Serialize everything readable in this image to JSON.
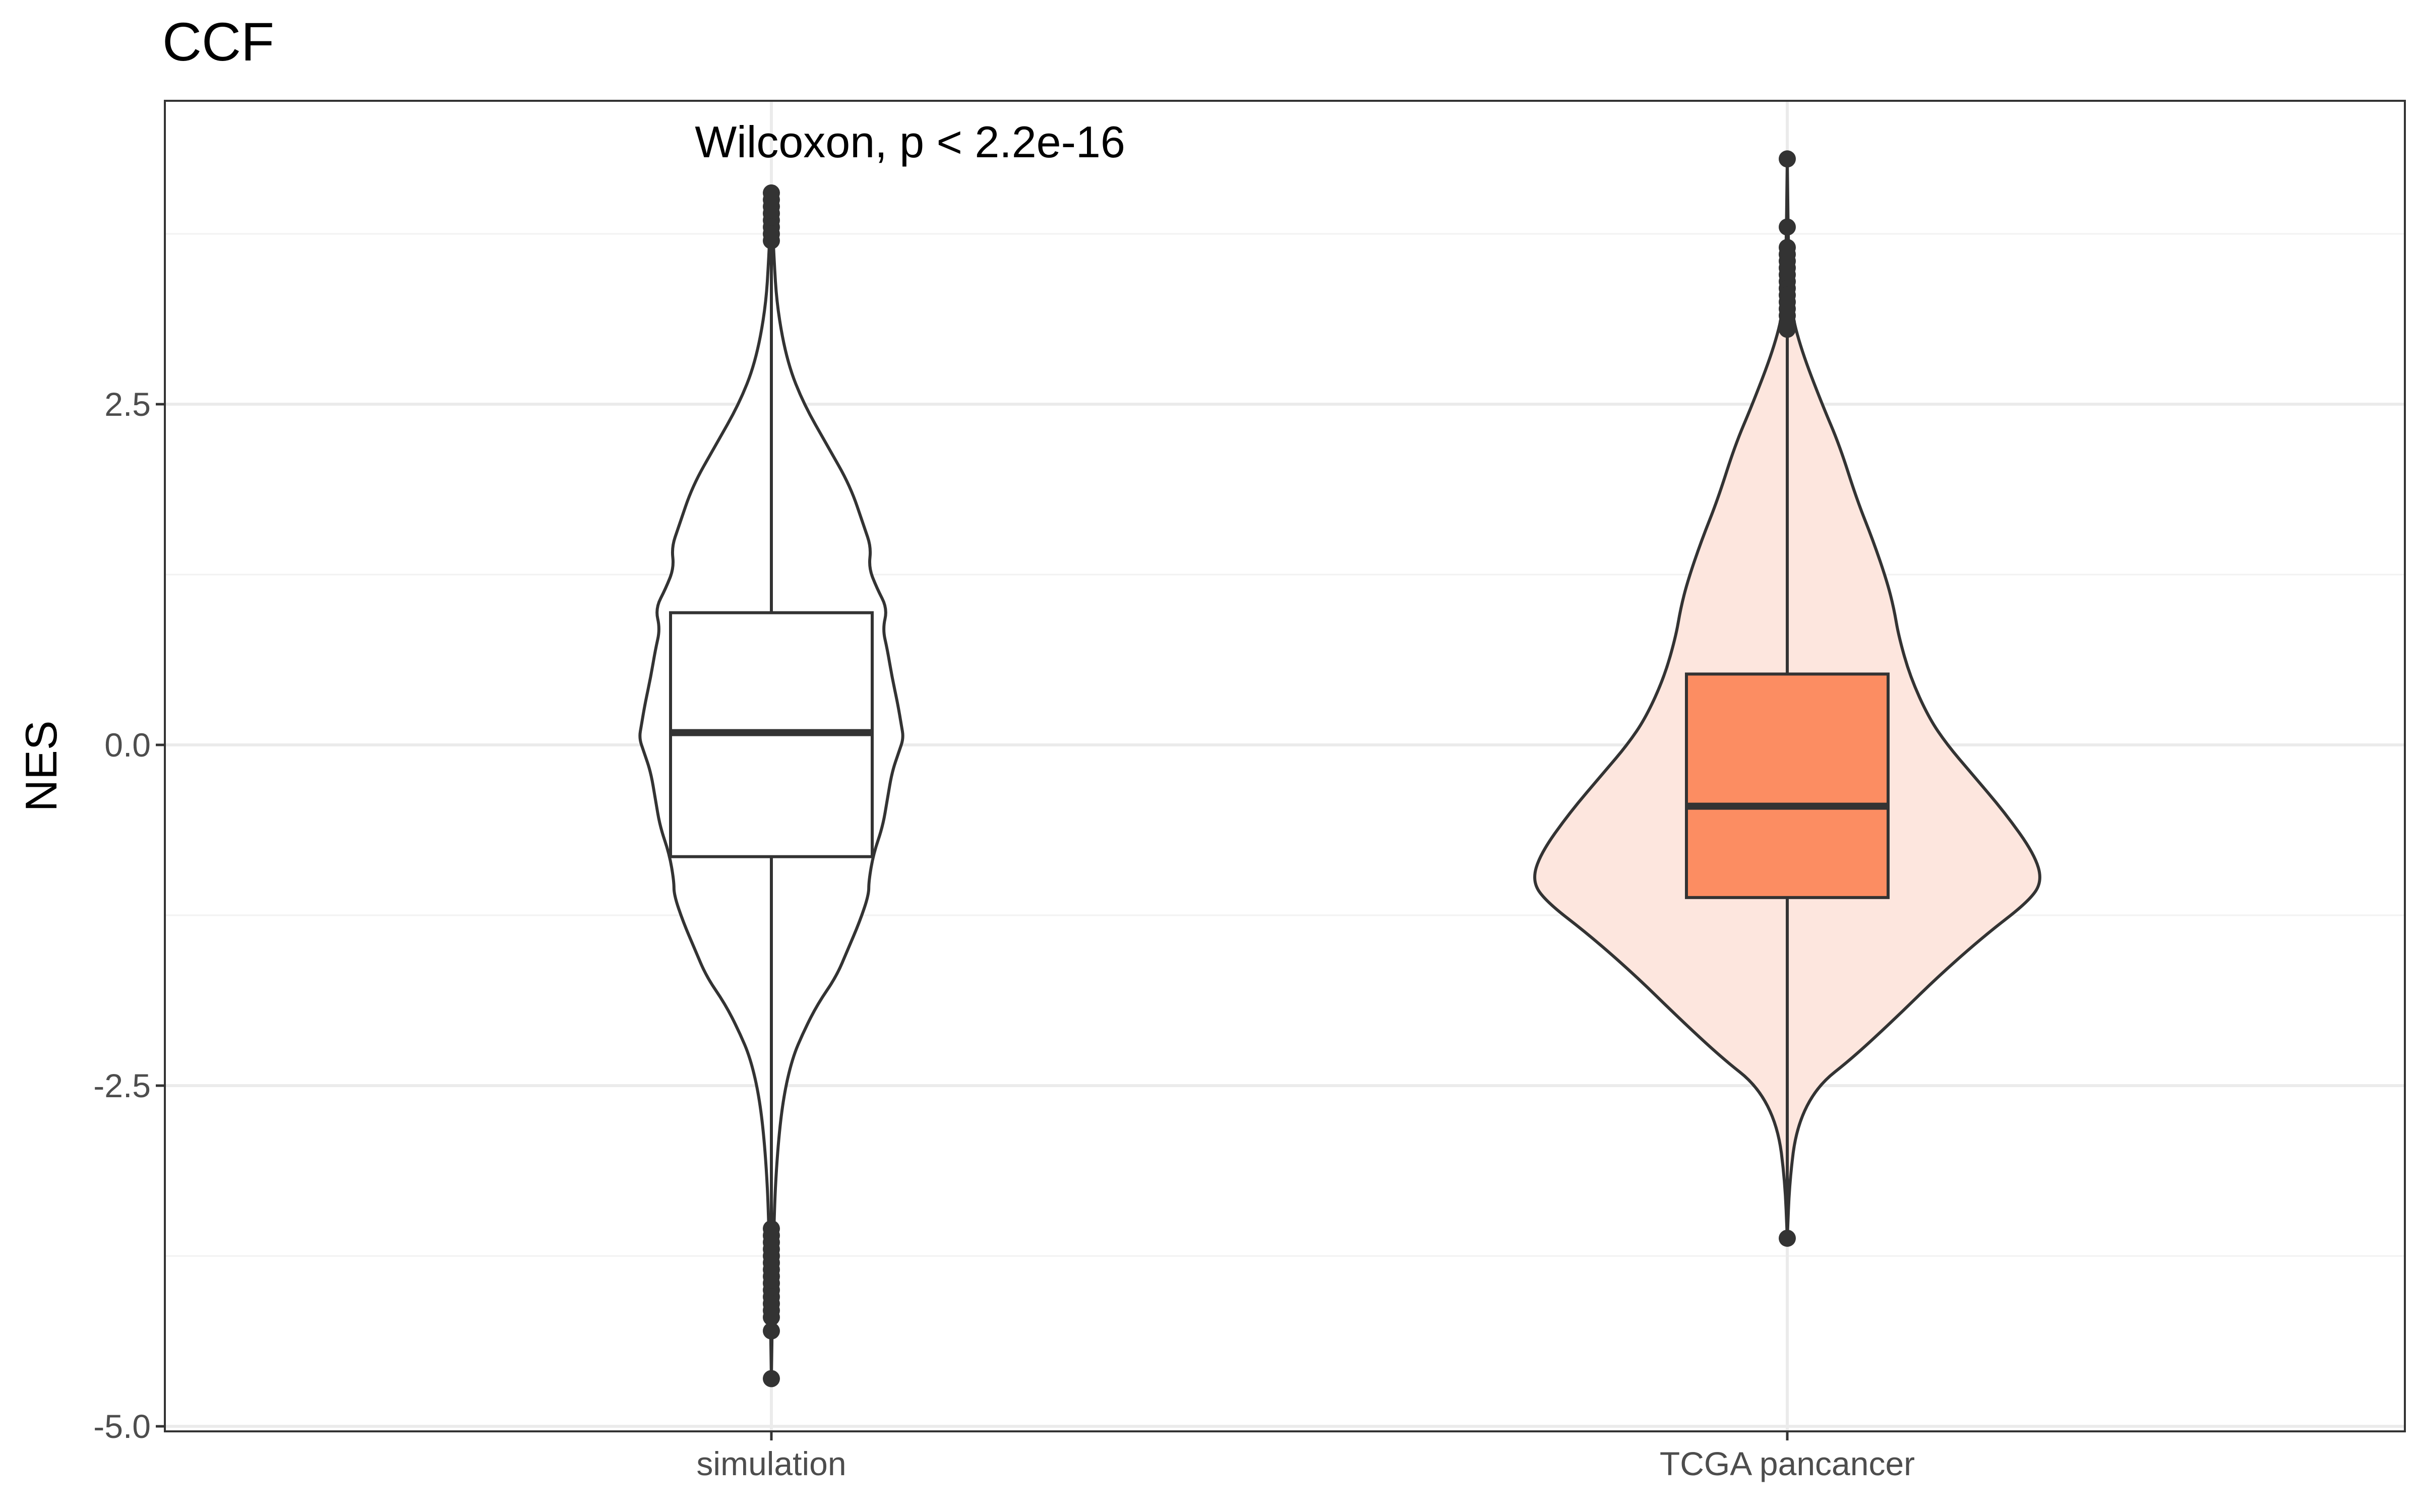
{
  "chart_data": {
    "type": "violin",
    "title": "CCF",
    "xlabel": "",
    "ylabel": "NES",
    "ylim": [
      -5.05,
      4.8
    ],
    "yticks": [
      2.5,
      0.0,
      -2.5,
      -5.0
    ],
    "ytick_labels": [
      "2.5",
      "0.0",
      "-2.5",
      "-5.0"
    ],
    "grid": true,
    "annotation": "Wilcoxon, p < 2.2e-16",
    "groups": [
      {
        "name": "simulation",
        "fill": "#ffffff",
        "box_fill": "#ffffff",
        "min": -4.65,
        "q1": -0.82,
        "median": 0.09,
        "q3": 0.97,
        "whisker_low": -3.5,
        "whisker_high": 3.65,
        "outliers": [
          4.05,
          4.0,
          3.95,
          3.9,
          3.85,
          3.8,
          3.75,
          3.7,
          -3.55,
          -3.6,
          -3.65,
          -3.7,
          -3.75,
          -3.8,
          -3.85,
          -3.9,
          -3.95,
          -4.0,
          -4.05,
          -4.1,
          -4.15,
          -4.2,
          -4.3,
          -4.65
        ],
        "density_profile": [
          [
            4.05,
            0.0
          ],
          [
            3.6,
            0.02
          ],
          [
            3.2,
            0.05
          ],
          [
            2.8,
            0.14
          ],
          [
            2.5,
            0.28
          ],
          [
            2.2,
            0.48
          ],
          [
            1.9,
            0.68
          ],
          [
            1.6,
            0.8
          ],
          [
            1.45,
            0.86
          ],
          [
            1.3,
            0.84
          ],
          [
            1.15,
            0.91
          ],
          [
            1.0,
            1.0
          ],
          [
            0.85,
            0.96
          ],
          [
            0.7,
            1.0
          ],
          [
            0.5,
            1.04
          ],
          [
            0.3,
            1.09
          ],
          [
            0.15,
            1.12
          ],
          [
            0.05,
            1.14
          ],
          [
            -0.05,
            1.1
          ],
          [
            -0.2,
            1.04
          ],
          [
            -0.4,
            1.0
          ],
          [
            -0.6,
            0.96
          ],
          [
            -0.8,
            0.88
          ],
          [
            -1.0,
            0.84
          ],
          [
            -1.1,
            0.84
          ],
          [
            -1.3,
            0.76
          ],
          [
            -1.5,
            0.66
          ],
          [
            -1.7,
            0.56
          ],
          [
            -1.9,
            0.4
          ],
          [
            -2.1,
            0.28
          ],
          [
            -2.3,
            0.18
          ],
          [
            -2.6,
            0.1
          ],
          [
            -3.0,
            0.05
          ],
          [
            -3.5,
            0.02
          ],
          [
            -4.65,
            0.0
          ]
        ]
      },
      {
        "name": "TCGA pancancer",
        "fill": "#fde6de",
        "box_fill": "#fc8d62",
        "min": -3.62,
        "q1": -1.12,
        "median": -0.45,
        "q3": 0.52,
        "whisker_low": -3.62,
        "whisker_high": 4.3,
        "outliers": [
          4.3,
          3.8,
          3.65,
          3.6,
          3.55,
          3.5,
          3.45,
          3.4,
          3.35,
          3.3,
          3.25,
          3.2,
          3.15,
          3.1,
          3.05,
          -3.62
        ],
        "density_profile": [
          [
            4.3,
            0.0
          ],
          [
            3.6,
            0.01
          ],
          [
            3.2,
            0.03
          ],
          [
            2.9,
            0.12
          ],
          [
            2.5,
            0.3
          ],
          [
            2.2,
            0.45
          ],
          [
            1.8,
            0.6
          ],
          [
            1.5,
            0.74
          ],
          [
            1.2,
            0.86
          ],
          [
            1.0,
            0.92
          ],
          [
            0.8,
            0.96
          ],
          [
            0.5,
            1.06
          ],
          [
            0.2,
            1.22
          ],
          [
            0.0,
            1.38
          ],
          [
            -0.2,
            1.58
          ],
          [
            -0.5,
            1.88
          ],
          [
            -0.8,
            2.13
          ],
          [
            -1.0,
            2.2
          ],
          [
            -1.15,
            2.08
          ],
          [
            -1.4,
            1.7
          ],
          [
            -1.7,
            1.3
          ],
          [
            -2.0,
            0.94
          ],
          [
            -2.3,
            0.56
          ],
          [
            -2.5,
            0.26
          ],
          [
            -2.8,
            0.08
          ],
          [
            -3.2,
            0.02
          ],
          [
            -3.62,
            0.0
          ]
        ]
      }
    ]
  }
}
